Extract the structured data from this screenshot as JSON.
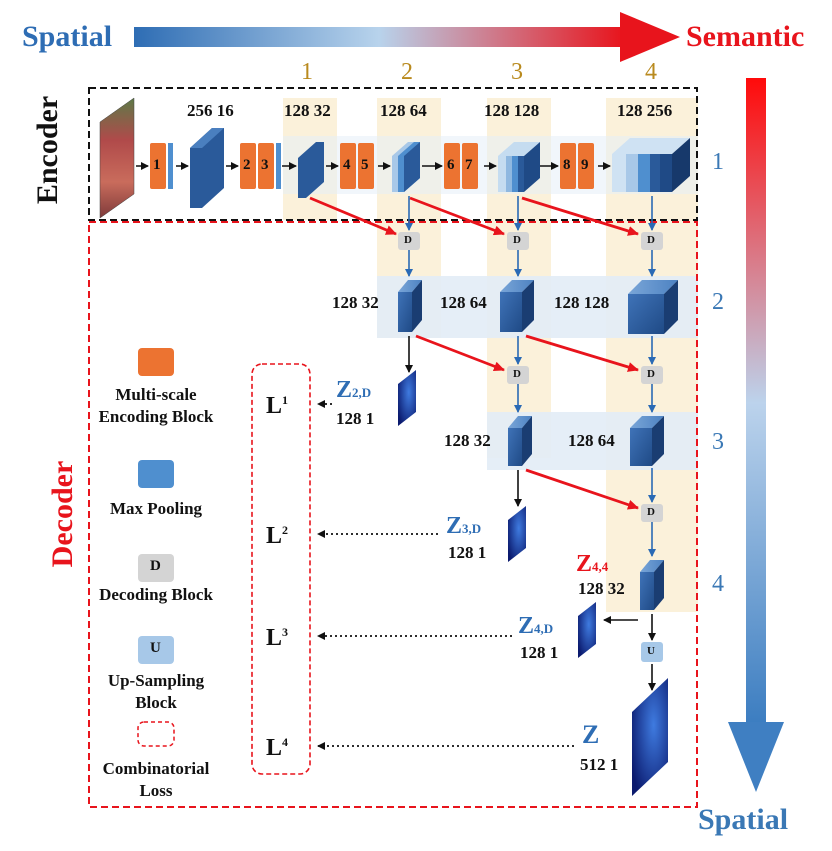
{
  "top": {
    "left_label": "Spatial",
    "right_label": "Semantic"
  },
  "side": {
    "bottom_label": "Spatial"
  },
  "sections": {
    "encoder": "Encoder",
    "decoder": "Decoder"
  },
  "stage_numbers": [
    "1",
    "2",
    "3",
    "4"
  ],
  "level_numbers": [
    "1",
    "2",
    "3",
    "4"
  ],
  "encoder_dims": {
    "d0": "256 16",
    "d1": "128 32",
    "d2": "128 64",
    "d3": "128 128",
    "d4": "128 256"
  },
  "encoder_blocks": [
    "1",
    "2",
    "3",
    "4",
    "5",
    "6",
    "7",
    "8",
    "9"
  ],
  "decoder_dims": {
    "r2a": "128 32",
    "r2b": "128 64",
    "r2c": "128 128",
    "r3a": "128 32",
    "r3b": "128 64",
    "r4": "128 32"
  },
  "outputs": {
    "z2_main": "Z",
    "z2_sub": "2,D",
    "z2_dim": "128 1",
    "z3_main": "Z",
    "z3_sub": "3,D",
    "z3_dim": "128 1",
    "z4_main": "Z",
    "z4_sub": "4,D",
    "z4_dim": "128 1",
    "z44_main": "Z",
    "z44_sub": "4,4",
    "z_main": "Z",
    "z_dim": "512 1"
  },
  "losses": [
    {
      "main": "L",
      "sup": "1"
    },
    {
      "main": "L",
      "sup": "2"
    },
    {
      "main": "L",
      "sup": "3"
    },
    {
      "main": "L",
      "sup": "4"
    }
  ],
  "legend": {
    "mse": "Multi-scale Encoding Block",
    "maxpool": "Max Pooling",
    "decoding_letter": "D",
    "decoding": "Decoding Block",
    "upsampling_letter": "U",
    "upsampling": "Up-Sampling Block",
    "loss": "Combinatorial Loss"
  },
  "colors": {
    "spatial_blue": "#2e6db4",
    "semantic_red": "#e8141c",
    "encoding_orange": "#ec7331",
    "maxpool_blue": "#4f8fcf",
    "decode_gray": "#d4d4d4",
    "upsample_lightblue": "#a7c8e8",
    "column_tint": "#fbf1da",
    "row_tint": "#e2ecf6"
  }
}
